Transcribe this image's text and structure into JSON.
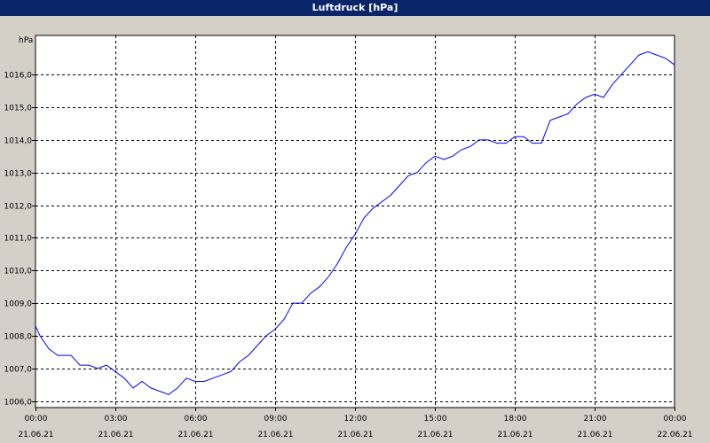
{
  "window": {
    "title": "Luftdruck [hPa]"
  },
  "colors": {
    "title_bar": "#0a246a",
    "series": "#0000ff",
    "background": "#d4d0c8",
    "plot_bg": "#ffffff"
  },
  "chart_data": {
    "type": "line",
    "title": "Luftdruck [hPa]",
    "ylabel": "hPa",
    "xlabel": "",
    "ylim": [
      1005.8,
      1017.2
    ],
    "xlim": [
      "21.06.21 00:00",
      "22.06.21 00:00"
    ],
    "grid": true,
    "yticks": [
      "1006,0",
      "1007,0",
      "1008,0",
      "1009,0",
      "1010,0",
      "1011,0",
      "1012,0",
      "1013,0",
      "1014,0",
      "1015,0",
      "1016,0"
    ],
    "xticks": [
      {
        "time": "00:00",
        "date": "21.06.21"
      },
      {
        "time": "03:00",
        "date": "21.06.21"
      },
      {
        "time": "06:00",
        "date": "21.06.21"
      },
      {
        "time": "09:00",
        "date": "21.06.21"
      },
      {
        "time": "12:00",
        "date": "21.06.21"
      },
      {
        "time": "15:00",
        "date": "21.06.21"
      },
      {
        "time": "18:00",
        "date": "21.06.21"
      },
      {
        "time": "21:00",
        "date": "21.06.21"
      },
      {
        "time": "00:00",
        "date": "22.06.21"
      }
    ],
    "series": [
      {
        "x": [
          "21.06.21 00:00",
          "21.06.21 00:10",
          "21.06.21 00:20",
          "21.06.21 00:30",
          "21.06.21 00:40",
          "21.06.21 00:50",
          "21.06.21 01:00",
          "21.06.21 01:20",
          "21.06.21 01:40",
          "21.06.21 02:00",
          "21.06.21 02:20",
          "21.06.21 02:40",
          "21.06.21 03:00",
          "21.06.21 03:20",
          "21.06.21 03:40",
          "21.06.21 04:00",
          "21.06.21 04:20",
          "21.06.21 04:40",
          "21.06.21 05:00",
          "21.06.21 05:20",
          "21.06.21 05:40",
          "21.06.21 06:00",
          "21.06.21 06:20",
          "21.06.21 06:40",
          "21.06.21 07:00",
          "21.06.21 07:20",
          "21.06.21 07:40",
          "21.06.21 08:00",
          "21.06.21 08:20",
          "21.06.21 08:40",
          "21.06.21 09:00",
          "21.06.21 09:20",
          "21.06.21 09:40",
          "21.06.21 10:00",
          "21.06.21 10:20",
          "21.06.21 10:40",
          "21.06.21 11:00",
          "21.06.21 11:20",
          "21.06.21 11:40",
          "21.06.21 12:00",
          "21.06.21 12:20",
          "21.06.21 12:40",
          "21.06.21 13:00",
          "21.06.21 13:20",
          "21.06.21 13:40",
          "21.06.21 14:00",
          "21.06.21 14:20",
          "21.06.21 14:40",
          "21.06.21 15:00",
          "21.06.21 15:20",
          "21.06.21 15:40",
          "21.06.21 16:00",
          "21.06.21 16:20",
          "21.06.21 16:40",
          "21.06.21 17:00",
          "21.06.21 17:20",
          "21.06.21 17:40",
          "21.06.21 18:00",
          "21.06.21 18:20",
          "21.06.21 18:40",
          "21.06.21 19:00",
          "21.06.21 19:20",
          "21.06.21 19:40",
          "21.06.21 20:00",
          "21.06.21 20:20",
          "21.06.21 20:40",
          "21.06.21 21:00",
          "21.06.21 21:20",
          "21.06.21 21:40",
          "21.06.21 22:00",
          "21.06.21 22:20",
          "21.06.21 22:40",
          "21.06.21 23:00",
          "21.06.21 23:20",
          "21.06.21 23:40",
          "22.06.21 00:00"
        ],
        "values": [
          1008.3,
          1008.0,
          1007.8,
          1007.6,
          1007.5,
          1007.4,
          1007.4,
          1007.4,
          1007.1,
          1007.1,
          1007.0,
          1007.1,
          1006.9,
          1006.7,
          1006.4,
          1006.6,
          1006.4,
          1006.3,
          1006.2,
          1006.4,
          1006.7,
          1006.6,
          1006.6,
          1006.7,
          1006.8,
          1006.9,
          1007.2,
          1007.4,
          1007.7,
          1008.0,
          1008.2,
          1008.5,
          1009.0,
          1009.0,
          1009.3,
          1009.5,
          1009.8,
          1010.2,
          1010.7,
          1011.1,
          1011.6,
          1011.9,
          1012.1,
          1012.3,
          1012.6,
          1012.9,
          1013.0,
          1013.3,
          1013.5,
          1013.4,
          1013.5,
          1013.7,
          1013.8,
          1014.0,
          1014.0,
          1013.9,
          1013.9,
          1014.1,
          1014.1,
          1013.9,
          1013.9,
          1014.6,
          1014.7,
          1014.8,
          1015.1,
          1015.3,
          1015.4,
          1015.3,
          1015.7,
          1016.0,
          1016.3,
          1016.6,
          1016.7,
          1016.6,
          1016.5,
          1016.3
        ]
      }
    ]
  }
}
